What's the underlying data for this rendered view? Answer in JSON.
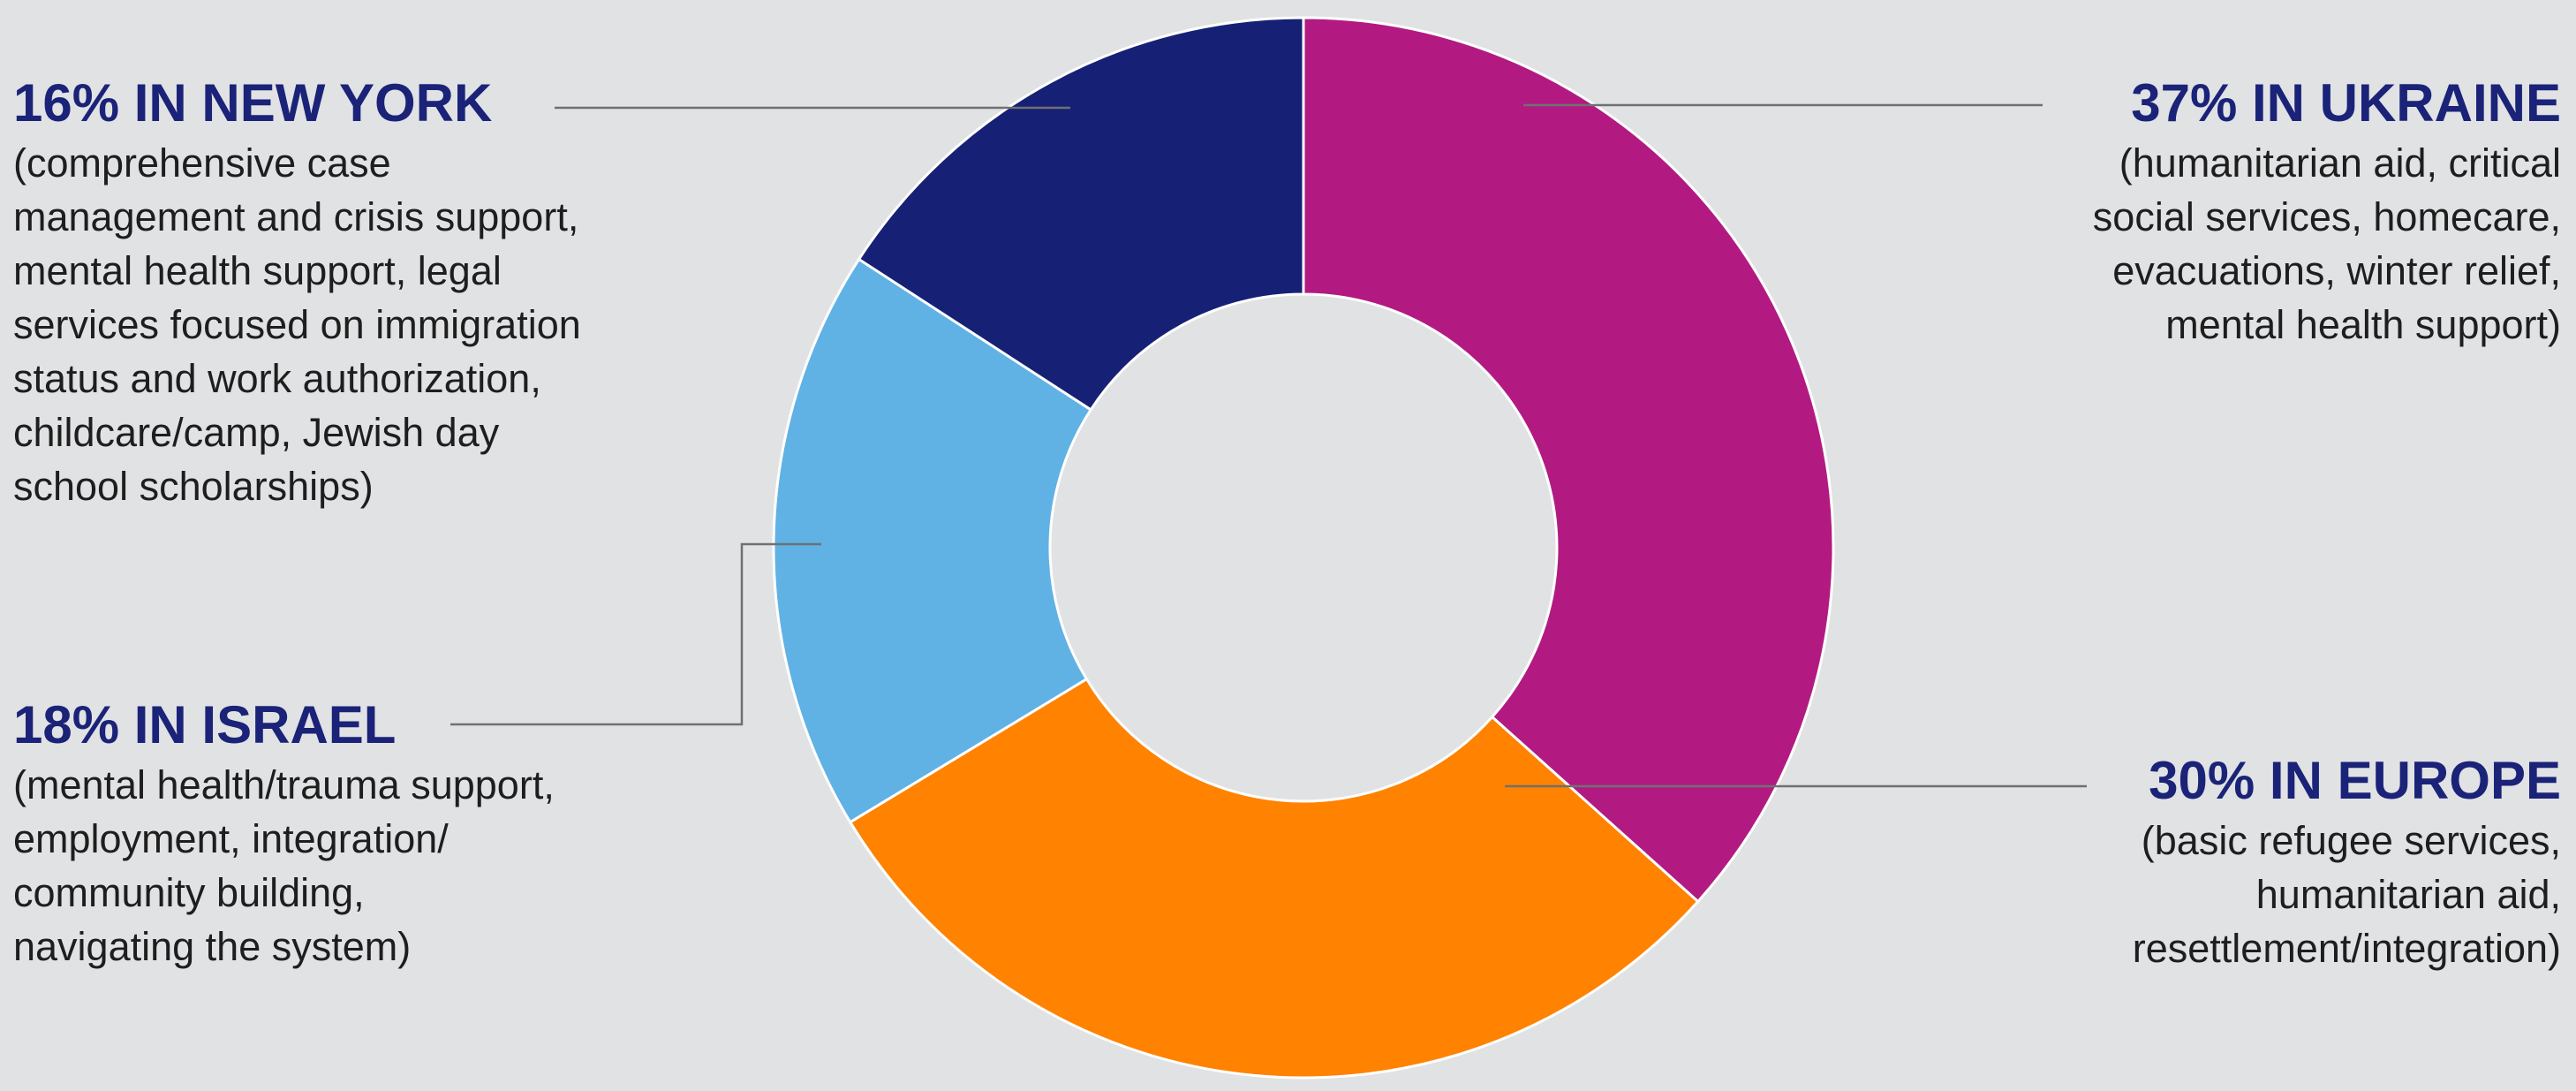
{
  "chart_data": {
    "type": "donut",
    "start": "12 o'clock, clockwise",
    "slices": [
      {
        "label": "UKRAINE",
        "value": 37,
        "color": "#b21a82"
      },
      {
        "label": "EUROPE",
        "value": 30,
        "color": "#ff8200"
      },
      {
        "label": "ISRAEL",
        "value": 18,
        "color": "#60b2e4"
      },
      {
        "label": "NEW YORK",
        "value": 16,
        "color": "#162175"
      }
    ],
    "background": "#e1e2e4",
    "leader_color": "#707070"
  },
  "callouts": {
    "new_york": {
      "title": "16% IN NEW YORK",
      "desc": "(comprehensive case\nmanagement and crisis support,\nmental health support, legal\nservices focused on immigration\nstatus and work authorization,\nchildcare/camp, Jewish day\nschool scholarships)"
    },
    "ukraine": {
      "title": "37% IN UKRAINE",
      "desc": "(humanitarian aid, critical\nsocial services, homecare,\nevacuations, winter relief,\nmental health support)"
    },
    "israel": {
      "title": "18% IN ISRAEL",
      "desc": "(mental health/trauma support,\nemployment, integration/\ncommunity building,\nnavigating the system)"
    },
    "europe": {
      "title": "30% IN EUROPE",
      "desc": "(basic refugee services,\nhumanitarian aid,\nresettlement/integration)"
    }
  }
}
